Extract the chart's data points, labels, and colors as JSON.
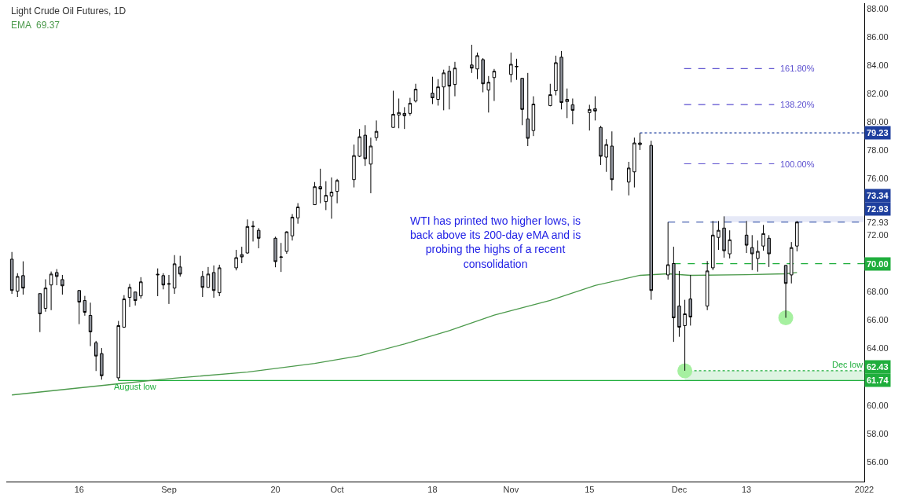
{
  "chart_data": {
    "type": "candlestick",
    "title": "Light Crude Oil Futures, 1D",
    "annotations": [
      "WTI has printed two higher lows, is\nback above its 200-day eMA and is\nprobing the highs of a recent\nconsolidation",
      {
        "text": "August low",
        "x": "2021-08-26",
        "y": 61.74
      },
      {
        "text": "Dec low",
        "x": "2021-12-31",
        "y": 62.43
      },
      "100.00%",
      "138.20%",
      "161.80%",
      "69.37"
    ],
    "x": [
      "2021-08-04",
      "2021-08-05",
      "2021-08-06",
      "2021-08-09",
      "2021-08-10",
      "2021-08-11",
      "2021-08-12",
      "2021-08-13",
      "2021-08-16",
      "2021-08-17",
      "2021-08-18",
      "2021-08-19",
      "2021-08-20",
      "2021-08-23",
      "2021-08-24",
      "2021-08-25",
      "2021-08-26",
      "2021-08-27",
      "2021-08-30",
      "2021-08-31",
      "2021-09-01",
      "2021-09-02",
      "2021-09-03",
      "2021-09-07",
      "2021-09-08",
      "2021-09-09",
      "2021-09-10",
      "2021-09-13",
      "2021-09-14",
      "2021-09-15",
      "2021-09-16",
      "2021-09-17",
      "2021-09-20",
      "2021-09-21",
      "2021-09-22",
      "2021-09-23",
      "2021-09-24",
      "2021-09-27",
      "2021-09-28",
      "2021-09-29",
      "2021-09-30",
      "2021-10-01",
      "2021-10-04",
      "2021-10-05",
      "2021-10-06",
      "2021-10-07",
      "2021-10-08",
      "2021-10-11",
      "2021-10-12",
      "2021-10-13",
      "2021-10-14",
      "2021-10-15",
      "2021-10-18",
      "2021-10-19",
      "2021-10-20",
      "2021-10-21",
      "2021-10-22",
      "2021-10-25",
      "2021-10-26",
      "2021-10-27",
      "2021-10-28",
      "2021-10-29",
      "2021-11-01",
      "2021-11-02",
      "2021-11-03",
      "2021-11-04",
      "2021-11-05",
      "2021-11-08",
      "2021-11-09",
      "2021-11-10",
      "2021-11-11",
      "2021-11-12",
      "2021-11-15",
      "2021-11-16",
      "2021-11-17",
      "2021-11-18",
      "2021-11-19",
      "2021-11-22",
      "2021-11-23",
      "2021-11-24",
      "2021-11-26",
      "2021-11-29",
      "2021-11-30",
      "2021-12-01",
      "2021-12-02",
      "2021-12-03",
      "2021-12-06",
      "2021-12-07",
      "2021-12-08",
      "2021-12-09",
      "2021-12-10",
      "2021-12-13",
      "2021-12-14",
      "2021-12-15",
      "2021-12-16",
      "2021-12-17",
      "2021-12-20",
      "2021-12-21",
      "2021-12-22"
    ],
    "ohlc": [
      [
        70.31,
        70.82,
        67.86,
        68.1
      ],
      [
        68.05,
        69.32,
        67.64,
        69.09
      ],
      [
        69.15,
        70.16,
        67.81,
        68.27
      ],
      [
        67.88,
        67.88,
        65.16,
        66.45
      ],
      [
        66.84,
        68.89,
        66.6,
        68.27
      ],
      [
        68.49,
        69.44,
        66.71,
        69.26
      ],
      [
        69.37,
        69.61,
        68.47,
        69.09
      ],
      [
        68.87,
        69.2,
        67.81,
        68.43
      ],
      [
        68.1,
        68.12,
        65.72,
        67.28
      ],
      [
        67.39,
        67.72,
        66.32,
        66.56
      ],
      [
        66.34,
        67.24,
        64.17,
        65.18
      ],
      [
        64.41,
        64.54,
        62.41,
        63.47
      ],
      [
        63.64,
        64.03,
        61.8,
        62.08
      ],
      [
        61.93,
        65.95,
        61.74,
        65.62
      ],
      [
        65.51,
        67.77,
        65.46,
        67.5
      ],
      [
        67.61,
        68.56,
        66.93,
        68.32
      ],
      [
        67.99,
        68.01,
        67.04,
        67.39
      ],
      [
        67.72,
        69.04,
        67.53,
        68.71
      ],
      [
        69.2,
        69.66,
        67.7,
        69.24
      ],
      [
        69.15,
        69.32,
        68.18,
        68.49
      ],
      [
        68.54,
        69.2,
        67.15,
        68.58
      ],
      [
        68.27,
        70.6,
        67.86,
        69.98
      ],
      [
        69.76,
        70.55,
        69.08,
        69.26
      ],
      [
        69.09,
        69.48,
        67.64,
        68.32
      ],
      [
        68.32,
        69.76,
        68.3,
        69.26
      ],
      [
        69.37,
        69.87,
        67.59,
        68.1
      ],
      [
        67.94,
        69.92,
        67.7,
        69.7
      ],
      [
        69.7,
        70.97,
        69.52,
        70.42
      ],
      [
        70.64,
        71.19,
        70.03,
        70.47
      ],
      [
        70.75,
        73.12,
        70.69,
        72.62
      ],
      [
        72.6,
        73.01,
        71.56,
        72.64
      ],
      [
        72.35,
        72.51,
        71.08,
        71.79
      ],
      [
        71.79,
        71.9,
        69.74,
        70.14
      ],
      [
        70.44,
        71.46,
        69.41,
        70.47
      ],
      [
        70.86,
        72.29,
        70.69,
        72.24
      ],
      [
        71.96,
        73.5,
        71.63,
        73.28
      ],
      [
        73.23,
        74.27,
        72.82,
        74.0
      ],
      [
        74.16,
        75.76,
        74.14,
        75.43
      ],
      [
        75.43,
        76.7,
        74.26,
        75.27
      ],
      [
        74.38,
        75.82,
        73.78,
        74.82
      ],
      [
        74.77,
        76.09,
        73.17,
        75.05
      ],
      [
        75.1,
        75.98,
        74.26,
        75.87
      ],
      [
        75.93,
        78.41,
        75.38,
        77.63
      ],
      [
        77.58,
        79.51,
        77.52,
        78.96
      ],
      [
        79.07,
        79.78,
        76.9,
        77.41
      ],
      [
        77.03,
        78.9,
        74.97,
        78.3
      ],
      [
        78.9,
        80.11,
        78.68,
        79.34
      ],
      [
        79.62,
        82.21,
        79.6,
        80.55
      ],
      [
        80.5,
        81.66,
        79.56,
        80.67
      ],
      [
        80.61,
        81.05,
        79.51,
        80.45
      ],
      [
        80.61,
        81.71,
        80.45,
        81.33
      ],
      [
        81.49,
        82.7,
        81.38,
        82.32
      ],
      [
        82.04,
        83.2,
        81.27,
        81.71
      ],
      [
        81.6,
        83.03,
        81.16,
        82.48
      ],
      [
        82.48,
        83.7,
        80.83,
        83.47
      ],
      [
        83.59,
        83.97,
        80.89,
        82.54
      ],
      [
        82.65,
        84.25,
        81.82,
        83.81
      ],
      [
        84.03,
        85.46,
        83.47,
        83.81
      ],
      [
        83.75,
        84.91,
        83.03,
        84.69
      ],
      [
        84.41,
        84.52,
        82.1,
        82.7
      ],
      [
        82.26,
        83.25,
        80.67,
        82.81
      ],
      [
        83.14,
        83.75,
        81.49,
        83.59
      ],
      [
        83.36,
        84.91,
        82.81,
        84.08
      ],
      [
        83.9,
        84.47,
        82.98,
        83.93
      ],
      [
        83.09,
        83.11,
        79.78,
        80.89
      ],
      [
        80.22,
        83.47,
        78.3,
        78.85
      ],
      [
        79.4,
        81.82,
        79.01,
        81.27
      ],
      [
        81.16,
        82.7,
        81.11,
        81.93
      ],
      [
        82.21,
        84.69,
        81.88,
        84.19
      ],
      [
        84.58,
        85.02,
        80.89,
        81.38
      ],
      [
        81.44,
        82.37,
        80.28,
        81.6
      ],
      [
        81.22,
        81.66,
        79.84,
        80.83
      ],
      [
        80.67,
        81.22,
        79.4,
        80.89
      ],
      [
        80.94,
        81.82,
        80.11,
        80.78
      ],
      [
        79.62,
        79.73,
        76.97,
        77.58
      ],
      [
        77.52,
        78.79,
        76.48,
        78.41
      ],
      [
        78.3,
        79.34,
        75.16,
        75.93
      ],
      [
        75.76,
        77.19,
        74.82,
        76.75
      ],
      [
        76.48,
        78.9,
        75.38,
        78.52
      ],
      [
        78.52,
        79.23,
        78.02,
        78.41
      ],
      [
        78.35,
        78.68,
        67.44,
        68.1
      ],
      [
        69.2,
        72.93,
        68.87,
        69.92
      ],
      [
        70.0,
        71.19,
        64.47,
        66.17
      ],
      [
        67.0,
        69.48,
        64.83,
        65.51
      ],
      [
        65.62,
        67.44,
        62.43,
        66.45
      ],
      [
        67.5,
        69.2,
        65.62,
        66.23
      ],
      [
        67.0,
        70.18,
        66.71,
        69.48
      ],
      [
        69.7,
        73.01,
        69.54,
        72.01
      ],
      [
        71.85,
        73.01,
        70.97,
        72.35
      ],
      [
        72.51,
        73.34,
        70.42,
        70.91
      ],
      [
        70.69,
        72.35,
        70.36,
        71.68
      ],
      [
        72.01,
        73.01,
        70.75,
        71.3
      ],
      [
        71.13,
        72.01,
        69.54,
        70.69
      ],
      [
        70.36,
        71.63,
        69.43,
        70.86
      ],
      [
        71.24,
        72.73,
        70.91,
        72.12
      ],
      [
        71.79,
        72.01,
        69.76,
        70.69
      ],
      [
        69.87,
        69.89,
        66.17,
        68.6
      ],
      [
        69.2,
        71.52,
        68.6,
        71.13
      ],
      [
        71.24,
        73.01,
        70.86,
        72.93
      ]
    ],
    "series": [
      {
        "type": "line",
        "name": "EMA",
        "color": "#4c9a4c",
        "x": [
          "2021-08-04",
          "2021-08-23",
          "2021-09-02",
          "2021-09-15",
          "2021-09-27",
          "2021-10-05",
          "2021-10-13",
          "2021-10-21",
          "2021-10-29",
          "2021-11-08",
          "2021-11-16",
          "2021-11-24",
          "2021-11-29",
          "2021-12-03",
          "2021-12-13",
          "2021-12-20",
          "2021-12-22"
        ],
        "values": [
          60.72,
          61.51,
          61.9,
          62.34,
          62.94,
          63.49,
          64.32,
          65.26,
          66.36,
          67.4,
          68.45,
          69.17,
          69.28,
          69.17,
          69.22,
          69.28,
          69.37
        ]
      },
      {
        "type": "scatter",
        "color": "#a6f0a0",
        "marker": "circle",
        "x": [
          "2021-12-02",
          "2021-12-20"
        ],
        "values": [
          62.43,
          66.17
        ]
      }
    ],
    "xlim": [
      "2021-08-03",
      "2022-01-03"
    ],
    "xticks": [
      {
        "value": "2021-08-16",
        "label": "16"
      },
      {
        "value": "2021-09-01",
        "label": "Sep"
      },
      {
        "value": "2021-09-20",
        "label": "20"
      },
      {
        "value": "2021-10-01",
        "label": "Oct"
      },
      {
        "value": "2021-10-18",
        "label": "18"
      },
      {
        "value": "2021-11-01",
        "label": "Nov"
      },
      {
        "value": "2021-11-15",
        "label": "15"
      },
      {
        "value": "2021-12-01",
        "label": "Dec"
      },
      {
        "value": "2021-12-13",
        "label": "13"
      },
      {
        "value": "2022-01-03",
        "label": "2022"
      }
    ],
    "ylim": [
      54.6,
      88.4
    ],
    "yticks": [
      {
        "value": 56,
        "label": "56.00"
      },
      {
        "value": 58,
        "label": "58.00"
      },
      {
        "value": 60,
        "label": "60.00"
      },
      {
        "value": 64,
        "label": "64.00"
      },
      {
        "value": 66,
        "label": "66.00"
      },
      {
        "value": 68,
        "label": "68.00"
      },
      {
        "value": 72,
        "label": "72.00"
      },
      {
        "value": 72.93,
        "label": "72.93"
      },
      {
        "value": 76,
        "label": "76.00"
      },
      {
        "value": 78,
        "label": "78.00"
      },
      {
        "value": 80,
        "label": "80.00"
      },
      {
        "value": 82,
        "label": "82.00"
      },
      {
        "value": 84,
        "label": "84.00"
      },
      {
        "value": 86,
        "label": "86.00"
      },
      {
        "value": 88,
        "label": "88.00"
      }
    ],
    "ref_lines": [
      {
        "axis": "y",
        "value": 79.23,
        "color": "#1e3f9e",
        "line_style": "dotted",
        "label": "79.23"
      },
      {
        "axis": "y",
        "value": 72.93,
        "color": "#1e3f9e",
        "line_style": "dashed",
        "label": "72.93"
      },
      {
        "axis": "y",
        "value": 70.0,
        "color": "#1fae3c",
        "line_style": "dashed",
        "label": "70.00"
      },
      {
        "axis": "y",
        "value": 62.43,
        "color": "#1fae3c",
        "line_style": "dotted",
        "label": "62.43"
      },
      {
        "axis": "y",
        "value": 61.74,
        "color": "#1fae3c",
        "line_style": "solid",
        "label": "61.74"
      },
      {
        "axis": "y",
        "value": 77.05,
        "color": "#5b4fcf",
        "line_style": "dashed"
      },
      {
        "axis": "y",
        "value": 81.23,
        "color": "#5b4fcf",
        "line_style": "dashed"
      },
      {
        "axis": "y",
        "value": 83.77,
        "color": "#5b4fcf",
        "line_style": "dashed"
      }
    ],
    "bands": [
      {
        "axis": "y",
        "from": 72.93,
        "to": 73.34,
        "color": "#e6e9f7",
        "label": "73.34"
      },
      {
        "axis": "y",
        "from": 61.74,
        "to": 62.43,
        "color": "#def4e2"
      }
    ]
  }
}
